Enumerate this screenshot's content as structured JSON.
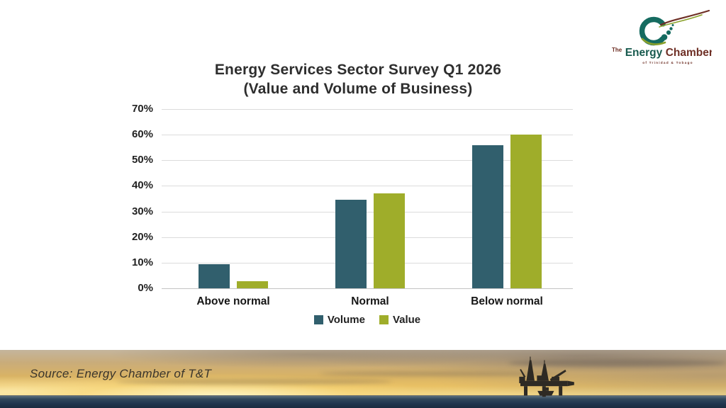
{
  "title": {
    "line1": "Energy Services Sector Survey Q1 2026",
    "line2": "(Value and Volume of Business)"
  },
  "chart_data": {
    "type": "bar",
    "categories": [
      "Above normal",
      "Normal",
      "Below normal"
    ],
    "series": [
      {
        "name": "Volume",
        "color": "#315f6d",
        "values": [
          9.5,
          34.5,
          56
        ]
      },
      {
        "name": "Value",
        "color": "#9fad2a",
        "values": [
          2.7,
          37,
          60
        ]
      }
    ],
    "title": "Energy Services Sector Survey Q1 2026 (Value and Volume of Business)",
    "xlabel": "",
    "ylabel": "",
    "ylim": [
      0,
      70
    ],
    "yticks": [
      "0%",
      "10%",
      "20%",
      "30%",
      "40%",
      "50%",
      "60%",
      "70%"
    ],
    "grid": "horizontal",
    "legend_position": "bottom"
  },
  "footer": {
    "source": "Source: Energy Chamber of T&T"
  },
  "logo": {
    "the": "The",
    "energy": "Energy",
    "chamber": "Chamber",
    "tagline": "of Trinidad & Tobago",
    "teal": "#156b60",
    "olive": "#8aa12b",
    "maroon": "#6f3026"
  }
}
